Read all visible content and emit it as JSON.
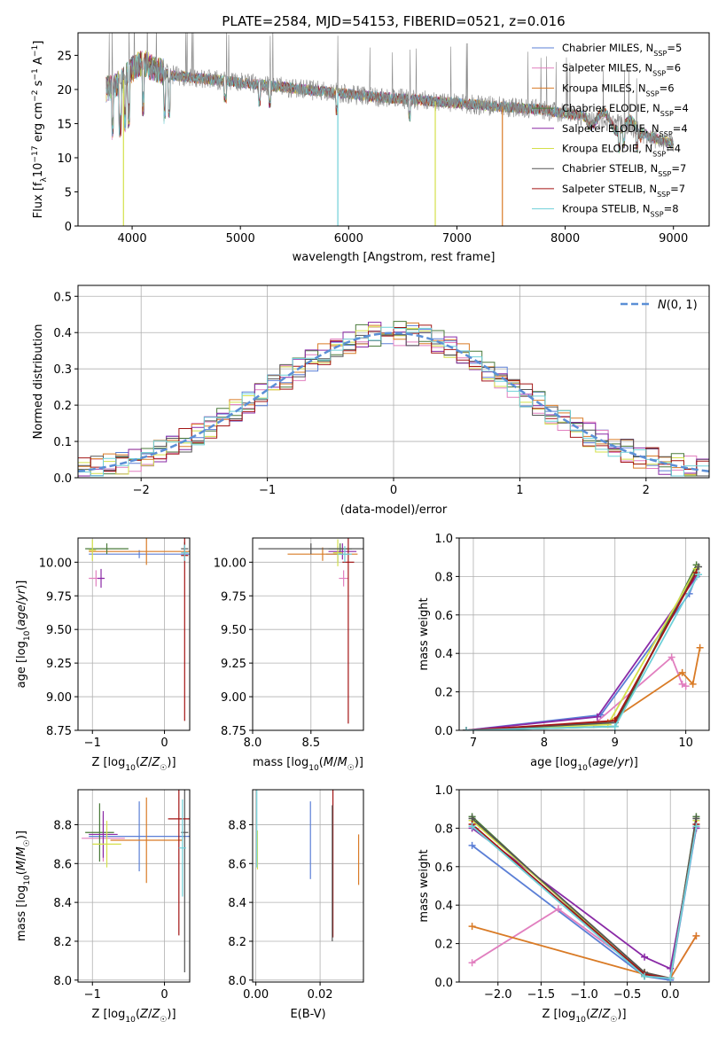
{
  "colors": {
    "Chabrier MILES": "#5b7fd6",
    "Salpeter MILES": "#e17fbf",
    "Kroupa MILES": "#d97b26",
    "Chabrier ELODIE": "#4a7a3a",
    "Salpeter ELODIE": "#8a2aa6",
    "Kroupa ELODIE": "#d4e04a",
    "Chabrier STELIB": "#555555",
    "Salpeter STELIB": "#a31515",
    "Kroupa STELIB": "#6fd0d8",
    "gauss": "#5b8fd6"
  },
  "chart_data": [
    {
      "id": "spectrum",
      "type": "line",
      "title": "PLATE=2584, MJD=54153, FIBERID=0521, z=0.016",
      "xlabel": "wavelength [Angstrom, rest frame]",
      "ylabel": "Flux [f_λ 10^-17 erg cm^-2 s^-1 A^-1]",
      "xlim": [
        3500,
        9330
      ],
      "ylim": [
        0,
        28.3
      ],
      "xticks": [
        4000,
        5000,
        6000,
        7000,
        8000,
        9000
      ],
      "yticks": [
        0,
        5,
        10,
        15,
        20,
        25
      ],
      "legend": [
        {
          "name": "Chabrier MILES",
          "nssp": "5"
        },
        {
          "name": "Salpeter MILES",
          "nssp": "6"
        },
        {
          "name": "Kroupa MILES",
          "nssp": "6"
        },
        {
          "name": "Chabrier ELODIE",
          "nssp": "4"
        },
        {
          "name": "Salpeter ELODIE",
          "nssp": "4"
        },
        {
          "name": "Kroupa ELODIE",
          "nssp": "4"
        },
        {
          "name": "Chabrier STELIB",
          "nssp": "7"
        },
        {
          "name": "Salpeter STELIB",
          "nssp": "7"
        },
        {
          "name": "Kroupa STELIB",
          "nssp": "8"
        }
      ],
      "continuum": [
        [
          3750,
          20
        ],
        [
          3900,
          21
        ],
        [
          4000,
          23
        ],
        [
          4100,
          24
        ],
        [
          4200,
          23
        ],
        [
          4400,
          22
        ],
        [
          4700,
          21.5
        ],
        [
          5000,
          21
        ],
        [
          5300,
          20.5
        ],
        [
          5600,
          20
        ],
        [
          5900,
          19.5
        ],
        [
          6200,
          19
        ],
        [
          6600,
          18.5
        ],
        [
          7000,
          18
        ],
        [
          7400,
          17.5
        ],
        [
          7800,
          17
        ],
        [
          8200,
          16
        ],
        [
          8500,
          15
        ],
        [
          8800,
          13
        ],
        [
          9000,
          12
        ]
      ],
      "dropouts": [
        {
          "series": "Kroupa ELODIE",
          "x": 3920
        },
        {
          "series": "Kroupa STELIB",
          "x": 5900
        },
        {
          "series": "Kroupa ELODIE",
          "x": 6800
        },
        {
          "series": "Kroupa MILES",
          "x": 7420
        }
      ]
    },
    {
      "id": "residuals",
      "type": "line",
      "xlabel": "(data-model)/error",
      "ylabel": "Normed distribution",
      "xlim": [
        -2.5,
        2.5
      ],
      "ylim": [
        0,
        0.53
      ],
      "xticks": [
        -2,
        -1,
        0,
        1,
        2
      ],
      "yticks": [
        0.0,
        0.1,
        0.2,
        0.3,
        0.4,
        0.5
      ],
      "legend": [
        "N(0,1)"
      ],
      "gauss": {
        "mean": 0,
        "sigma": 1
      }
    },
    {
      "id": "age_vs_Z",
      "type": "scatter",
      "xlabel": "Z [log10(Z/Z☉)]",
      "ylabel": "age [log10(age/yr)]",
      "xlim": [
        -1.2,
        0.35
      ],
      "ylim": [
        8.75,
        10.18
      ],
      "xticks": [
        -1,
        0
      ],
      "yticks": [
        8.75,
        9.0,
        9.25,
        9.5,
        9.75,
        10.0
      ],
      "points": [
        {
          "series": "Chabrier MILES",
          "x": -0.35,
          "y": 10.06,
          "xerr": 0.7,
          "yerr": 0.03
        },
        {
          "series": "Salpeter MILES",
          "x": -0.95,
          "y": 9.88,
          "xerr": 0.1,
          "yerr": 0.06
        },
        {
          "series": "Kroupa MILES",
          "x": -0.25,
          "y": 10.08,
          "xerr": 0.8,
          "yerr": 0.1
        },
        {
          "series": "Chabrier ELODIE",
          "x": -0.8,
          "y": 10.1,
          "xerr": 0.3,
          "yerr": 0.04
        },
        {
          "series": "Salpeter ELODIE",
          "x": -0.88,
          "y": 9.88,
          "xerr": 0.05,
          "yerr": 0.07
        },
        {
          "series": "Kroupa ELODIE",
          "x": -1.0,
          "y": 10.09,
          "xerr": 0.05,
          "yerr": 0.08
        },
        {
          "series": "Chabrier STELIB",
          "x": 0.28,
          "y": 10.1,
          "xerr": 0.05,
          "yerr": 0.05
        },
        {
          "series": "Salpeter STELIB",
          "x": 0.28,
          "y": 10.05,
          "xerr": 0.05,
          "yerr": 1.23
        },
        {
          "series": "Kroupa STELIB",
          "x": 0.28,
          "y": 10.07,
          "xerr": 0.05,
          "yerr": 0.06
        }
      ]
    },
    {
      "id": "age_vs_mass",
      "type": "scatter",
      "xlabel": "mass [log10(M/M☉)]",
      "ylabel": "",
      "xlim": [
        8.0,
        8.95
      ],
      "ylim": [
        8.75,
        10.18
      ],
      "xticks": [
        8.0,
        8.5
      ],
      "yticks": [
        8.75,
        9.0,
        9.25,
        9.5,
        9.75,
        10.0
      ],
      "points": [
        {
          "series": "Chabrier MILES",
          "x": 8.73,
          "y": 10.06,
          "xerr": 0.1,
          "yerr": 0.06
        },
        {
          "series": "Salpeter MILES",
          "x": 8.78,
          "y": 9.88,
          "xerr": 0.04,
          "yerr": 0.06
        },
        {
          "series": "Kroupa MILES",
          "x": 8.6,
          "y": 10.06,
          "xerr": 0.3,
          "yerr": 0.05
        },
        {
          "series": "Chabrier ELODIE",
          "x": 8.75,
          "y": 10.1,
          "xerr": 0.1,
          "yerr": 0.04
        },
        {
          "series": "Salpeter ELODIE",
          "x": 8.77,
          "y": 10.08,
          "xerr": 0.12,
          "yerr": 0.06
        },
        {
          "series": "Kroupa ELODIE",
          "x": 8.73,
          "y": 10.07,
          "xerr": 0.04,
          "yerr": 0.1
        },
        {
          "series": "Chabrier STELIB",
          "x": 8.5,
          "y": 10.1,
          "xerr": 0.45,
          "yerr": 0.04
        },
        {
          "series": "Salpeter STELIB",
          "x": 8.82,
          "y": 10.0,
          "xerr": 0.05,
          "yerr": 1.2
        },
        {
          "series": "Kroupa STELIB",
          "x": 8.79,
          "y": 10.06,
          "xerr": 0.06,
          "yerr": 0.06
        }
      ]
    },
    {
      "id": "weight_vs_age",
      "type": "line",
      "xlabel": "age [log10(age/yr)]",
      "ylabel": "mass weight",
      "xlim": [
        6.8,
        10.33
      ],
      "ylim": [
        0,
        1.0
      ],
      "xticks": [
        7,
        8,
        9,
        10
      ],
      "yticks": [
        0.0,
        0.2,
        0.4,
        0.6,
        0.8,
        1.0
      ],
      "series": [
        {
          "name": "Chabrier MILES",
          "x": [
            6.9,
            8.8,
            10.05,
            10.15
          ],
          "y": [
            0.0,
            0.08,
            0.71,
            0.8
          ]
        },
        {
          "name": "Salpeter MILES",
          "x": [
            6.9,
            8.7,
            9.8,
            9.95,
            10.0
          ],
          "y": [
            0.0,
            0.03,
            0.38,
            0.24,
            0.23
          ]
        },
        {
          "name": "Kroupa MILES",
          "x": [
            6.9,
            8.9,
            9.95,
            10.1,
            10.2
          ],
          "y": [
            0.0,
            0.04,
            0.3,
            0.24,
            0.43
          ]
        },
        {
          "name": "Chabrier ELODIE",
          "x": [
            6.9,
            9.0,
            10.15
          ],
          "y": [
            0.0,
            0.02,
            0.86
          ]
        },
        {
          "name": "Salpeter ELODIE",
          "x": [
            6.9,
            8.75,
            10.15
          ],
          "y": [
            0.0,
            0.07,
            0.8
          ]
        },
        {
          "name": "Kroupa ELODIE",
          "x": [
            6.9,
            8.9,
            10.15
          ],
          "y": [
            0.0,
            0.03,
            0.84
          ]
        },
        {
          "name": "Chabrier STELIB",
          "x": [
            6.9,
            9.0,
            10.18
          ],
          "y": [
            0.0,
            0.04,
            0.85
          ]
        },
        {
          "name": "Salpeter STELIB",
          "x": [
            6.9,
            9.0,
            10.15
          ],
          "y": [
            0.0,
            0.05,
            0.82
          ]
        },
        {
          "name": "Kroupa STELIB",
          "x": [
            6.9,
            9.0,
            10.18
          ],
          "y": [
            0.0,
            0.02,
            0.81
          ]
        }
      ]
    },
    {
      "id": "mass_vs_Z",
      "type": "scatter",
      "xlabel": "Z [log10(Z/Z☉)]",
      "ylabel": "mass [log10(M/M☉)]",
      "xlim": [
        -1.2,
        0.35
      ],
      "ylim": [
        7.99,
        8.98
      ],
      "xticks": [
        -1,
        0
      ],
      "yticks": [
        8.0,
        8.2,
        8.4,
        8.6,
        8.8
      ],
      "points": [
        {
          "series": "Chabrier MILES",
          "x": -0.35,
          "y": 8.74,
          "xerr": 0.7,
          "yerr": 0.18
        },
        {
          "series": "Salpeter MILES",
          "x": -0.85,
          "y": 8.73,
          "xerr": 0.3,
          "yerr": 0.12
        },
        {
          "series": "Kroupa MILES",
          "x": -0.25,
          "y": 8.72,
          "xerr": 0.5,
          "yerr": 0.22
        },
        {
          "series": "Chabrier ELODIE",
          "x": -0.9,
          "y": 8.76,
          "xerr": 0.2,
          "yerr": 0.15
        },
        {
          "series": "Salpeter ELODIE",
          "x": -0.85,
          "y": 8.75,
          "xerr": 0.2,
          "yerr": 0.12
        },
        {
          "series": "Kroupa ELODIE",
          "x": -0.8,
          "y": 8.7,
          "xerr": 0.2,
          "yerr": 0.12
        },
        {
          "series": "Chabrier STELIB",
          "x": 0.28,
          "y": 8.76,
          "xerr": 0.05,
          "yerr": 0.72
        },
        {
          "series": "Salpeter STELIB",
          "x": 0.2,
          "y": 8.83,
          "xerr": 0.15,
          "yerr": 0.6
        },
        {
          "series": "Kroupa STELIB",
          "x": 0.25,
          "y": 8.68,
          "xerr": 0.05,
          "yerr": 0.25
        }
      ]
    },
    {
      "id": "mass_vs_EBV",
      "type": "scatter",
      "xlabel": "E(B-V)",
      "ylabel": "",
      "xlim": [
        -0.001,
        0.0335
      ],
      "ylim": [
        7.99,
        8.98
      ],
      "xticks": [
        0.0,
        0.02
      ],
      "yticks": [
        8.0,
        8.2,
        8.4,
        8.6,
        8.8
      ],
      "points": [
        {
          "series": "Chabrier MILES",
          "x": 0.017,
          "y": 8.72,
          "yerr": 0.2
        },
        {
          "series": "Kroupa MILES",
          "x": 0.032,
          "y": 8.62,
          "yerr": 0.13
        },
        {
          "series": "Salpeter STELIB",
          "x": 0.024,
          "y": 8.6,
          "yerr": 0.38
        },
        {
          "series": "Chabrier STELIB",
          "x": 0.0238,
          "y": 8.55,
          "yerr": 0.35
        },
        {
          "series": "Kroupa ELODIE",
          "x": 0.0005,
          "y": 8.67,
          "yerr": 0.1
        },
        {
          "series": "Kroupa STELIB",
          "x": 0.0003,
          "y": 8.78,
          "yerr": 0.2
        }
      ]
    },
    {
      "id": "weight_vs_Z",
      "type": "line",
      "xlabel": "Z [log10(Z/Z☉)]",
      "ylabel": "mass weight",
      "xlim": [
        -2.45,
        0.45
      ],
      "ylim": [
        0,
        1.0
      ],
      "xticks": [
        -2.0,
        -1.5,
        -1.0,
        -0.5,
        0.0
      ],
      "yticks": [
        0.0,
        0.2,
        0.4,
        0.6,
        0.8,
        1.0
      ],
      "series": [
        {
          "name": "Chabrier MILES",
          "x": [
            -2.3,
            -0.3,
            0.0,
            0.3
          ],
          "y": [
            0.71,
            0.03,
            0.01,
            0.8
          ]
        },
        {
          "name": "Salpeter MILES",
          "x": [
            -2.3,
            -1.3,
            -0.3,
            0.0,
            0.3
          ],
          "y": [
            0.1,
            0.38,
            0.05,
            0.02,
            0.24
          ]
        },
        {
          "name": "Kroupa MILES",
          "x": [
            -2.3,
            -0.3,
            0.0,
            0.3
          ],
          "y": [
            0.29,
            0.04,
            0.02,
            0.24
          ]
        },
        {
          "name": "Chabrier ELODIE",
          "x": [
            -2.3,
            -0.3,
            0.0,
            0.3
          ],
          "y": [
            0.86,
            0.03,
            0.02,
            0.86
          ]
        },
        {
          "name": "Salpeter ELODIE",
          "x": [
            -2.3,
            -0.3,
            0.0,
            0.3
          ],
          "y": [
            0.8,
            0.13,
            0.07,
            0.8
          ]
        },
        {
          "name": "Kroupa ELODIE",
          "x": [
            -2.3,
            -0.3,
            0.0,
            0.3
          ],
          "y": [
            0.84,
            0.05,
            0.02,
            0.84
          ]
        },
        {
          "name": "Chabrier STELIB",
          "x": [
            -2.3,
            -0.3,
            0.0,
            0.3
          ],
          "y": [
            0.85,
            0.05,
            0.02,
            0.85
          ]
        },
        {
          "name": "Salpeter STELIB",
          "x": [
            -2.3,
            -0.3,
            0.0,
            0.3
          ],
          "y": [
            0.82,
            0.04,
            0.02,
            0.82
          ]
        },
        {
          "name": "Kroupa STELIB",
          "x": [
            -2.3,
            -0.3,
            0.0,
            0.3
          ],
          "y": [
            0.81,
            0.03,
            0.02,
            0.81
          ]
        }
      ]
    }
  ]
}
